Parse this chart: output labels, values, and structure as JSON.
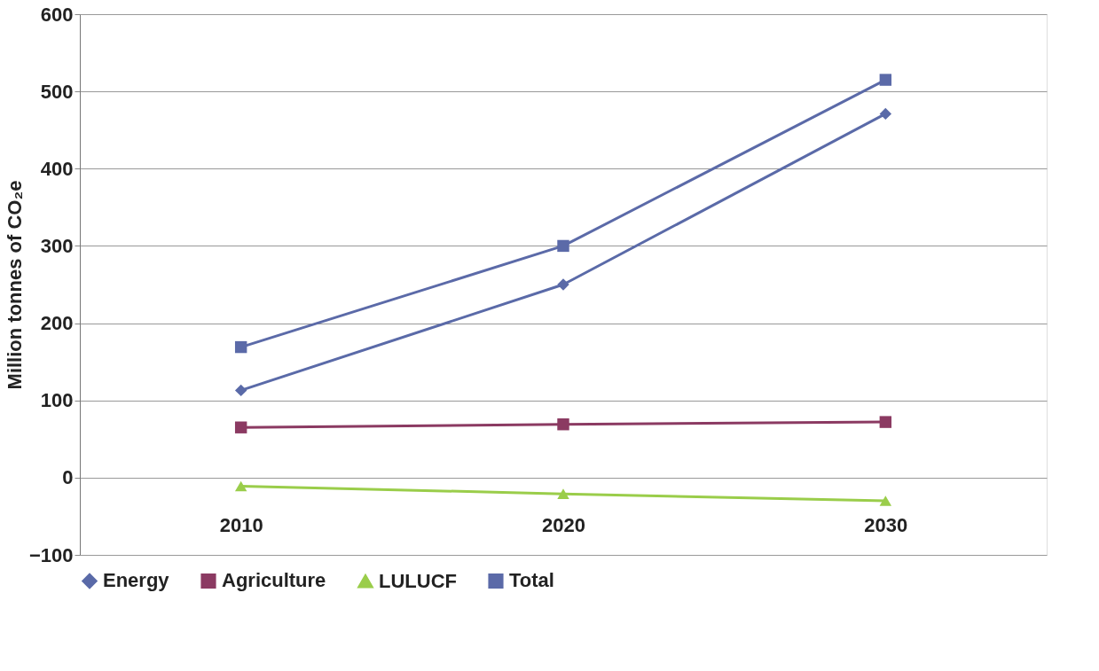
{
  "chart_data": {
    "type": "line",
    "ylabel": "Million tonnes of CO₂e",
    "categories": [
      "2010",
      "2020",
      "2030"
    ],
    "series": [
      {
        "name": "Energy",
        "color": "#5a6aa8",
        "marker": "diamond",
        "values": [
          113,
          250,
          471
        ]
      },
      {
        "name": "Agriculture",
        "color": "#8b3a62",
        "marker": "square",
        "values": [
          65,
          69,
          72
        ]
      },
      {
        "name": "LULUCF",
        "color": "#9acd4a",
        "marker": "triangle",
        "values": [
          -11,
          -21,
          -30
        ]
      },
      {
        "name": "Total",
        "color": "#5b6aa8",
        "marker": "square",
        "values": [
          169,
          300,
          515
        ]
      }
    ],
    "ylim": [
      -100,
      600
    ],
    "yticks": [
      -100,
      0,
      100,
      200,
      300,
      400,
      500,
      600
    ],
    "grid": "y",
    "legend": "bottom"
  }
}
